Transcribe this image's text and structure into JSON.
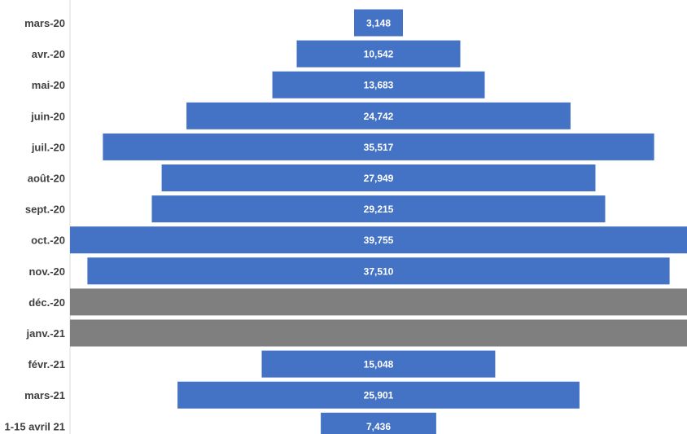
{
  "chart_data": {
    "type": "bar",
    "orientation": "horizontal",
    "alignment": "centered",
    "categories": [
      "mars-20",
      "avr.-20",
      "mai-20",
      "juin-20",
      "juil.-20",
      "août-20",
      "sept.-20",
      "oct.-20",
      "nov.-20",
      "déc.-20",
      "janv.-21",
      "févr.-21",
      "mars-21",
      "1-15 avril 21"
    ],
    "values": [
      3148,
      10542,
      13683,
      24742,
      35517,
      27949,
      29215,
      39755,
      37510,
      null,
      null,
      15048,
      25901,
      7436
    ],
    "value_labels": [
      "3,148",
      "10,542",
      "13,683",
      "24,742",
      "35,517",
      "27,949",
      "29,215",
      "39,755",
      "37,510",
      "",
      "",
      "15,048",
      "25,901",
      "7,436"
    ],
    "unlabeled_categories": [
      "déc.-20",
      "janv.-21"
    ],
    "title": "",
    "xlabel": "",
    "ylabel": "",
    "grid": false,
    "legend": "none",
    "colors": {
      "bar": "#4472C4",
      "unlabeled_bar": "#7F7F7F",
      "value_text": "#FFFFFF",
      "category_text": "#404040",
      "axis_line": "#D9D9D9"
    }
  }
}
